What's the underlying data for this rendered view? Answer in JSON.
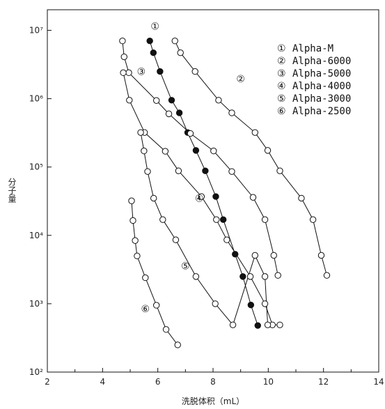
{
  "chart_data": {
    "type": "line",
    "title": "",
    "xlabel": "洗脱体积（mL）",
    "ylabel": "分子量",
    "xlim": [
      2,
      14
    ],
    "ylim": [
      100,
      20000000
    ],
    "y_scale": "log",
    "x_ticks": [
      "2",
      "4",
      "6",
      "8",
      "10",
      "12",
      "14"
    ],
    "y_ticks": [
      {
        "value": 100,
        "label": "10²"
      },
      {
        "value": 1000,
        "label": "10³"
      },
      {
        "value": 10000,
        "label": "10⁴"
      },
      {
        "value": 100000,
        "label": "10⁵"
      },
      {
        "value": 1000000,
        "label": "10⁶"
      },
      {
        "value": 10000000,
        "label": "10⁷"
      }
    ],
    "grid": false,
    "legend_position": "top-right",
    "series": [
      {
        "name": "Alpha-M",
        "marker": "①",
        "style": "filled",
        "x": [
          5.71,
          5.84,
          6.08,
          6.5,
          6.78,
          7.08,
          7.38,
          7.72,
          8.1,
          8.37,
          8.8,
          9.08,
          9.37,
          9.62
        ],
        "y": [
          7000000,
          4700000,
          2500000,
          950000,
          620000,
          320000,
          175000,
          88000,
          37000,
          17000,
          5300,
          2500,
          960,
          480
        ]
      },
      {
        "name": "Alpha-6000",
        "marker": "②",
        "style": "open",
        "x": [
          6.62,
          6.82,
          7.35,
          8.2,
          8.68,
          9.52,
          9.98,
          10.42,
          11.2,
          11.62,
          11.92,
          12.12
        ],
        "y": [
          7000000,
          4700000,
          2500000,
          950000,
          620000,
          320000,
          175000,
          88000,
          35000,
          17000,
          5100,
          2600
        ]
      },
      {
        "name": "Alpha-5000",
        "marker": "③",
        "style": "open",
        "x": [
          4.72,
          4.78,
          4.95,
          5.95,
          6.4,
          7.18,
          8.02,
          8.68,
          9.45,
          9.88,
          10.2,
          10.35
        ],
        "y": [
          7000000,
          4100000,
          2400000,
          940000,
          600000,
          310000,
          172000,
          86000,
          36000,
          17000,
          5100,
          2600
        ]
      },
      {
        "name": "Alpha-4000",
        "marker": "④",
        "style": "open",
        "x": [
          4.75,
          4.97,
          5.52,
          6.27,
          6.75,
          7.58,
          8.12,
          8.5,
          9.35,
          9.88,
          10.15,
          10.42
        ],
        "y": [
          2400000,
          950000,
          320000,
          170000,
          88000,
          37000,
          17000,
          8600,
          2500,
          1000,
          490,
          490
        ]
      },
      {
        "name": "Alpha-3000",
        "marker": "⑤",
        "style": "open",
        "x": [
          5.38,
          5.5,
          5.63,
          5.85,
          6.18,
          6.65,
          7.38,
          8.08,
          8.72,
          9.52,
          9.88,
          9.98
        ],
        "y": [
          320000,
          172000,
          86000,
          35000,
          17000,
          8600,
          2500,
          1000,
          490,
          5100,
          2500,
          490
        ]
      },
      {
        "name": "Alpha-2500",
        "marker": "⑥",
        "style": "open",
        "x": [
          5.05,
          5.1,
          5.18,
          5.25,
          5.55,
          5.95,
          6.3,
          6.72
        ],
        "y": [
          32000,
          16500,
          8400,
          5000,
          2400,
          950,
          420,
          250
        ]
      }
    ],
    "annotations": [
      {
        "text": "①",
        "x": 5.9,
        "y": 11500000
      },
      {
        "text": "②",
        "x": 9.0,
        "y": 1950000
      },
      {
        "text": "③",
        "x": 5.4,
        "y": 2500000
      },
      {
        "text": "④",
        "x": 7.5,
        "y": 35000
      },
      {
        "text": "⑤",
        "x": 7.0,
        "y": 3600
      },
      {
        "text": "⑥",
        "x": 5.55,
        "y": 850
      }
    ]
  },
  "legend": [
    {
      "marker": "①",
      "label": "Alpha-M"
    },
    {
      "marker": "②",
      "label": "Alpha-6000"
    },
    {
      "marker": "③",
      "label": "Alpha-5000"
    },
    {
      "marker": "④",
      "label": "Alpha-4000"
    },
    {
      "marker": "⑤",
      "label": "Alpha-3000"
    },
    {
      "marker": "⑥",
      "label": "Alpha-2500"
    }
  ],
  "colors": {
    "line": "#111111",
    "filled_marker": "#111111",
    "open_marker_fill": "#ffffff"
  }
}
